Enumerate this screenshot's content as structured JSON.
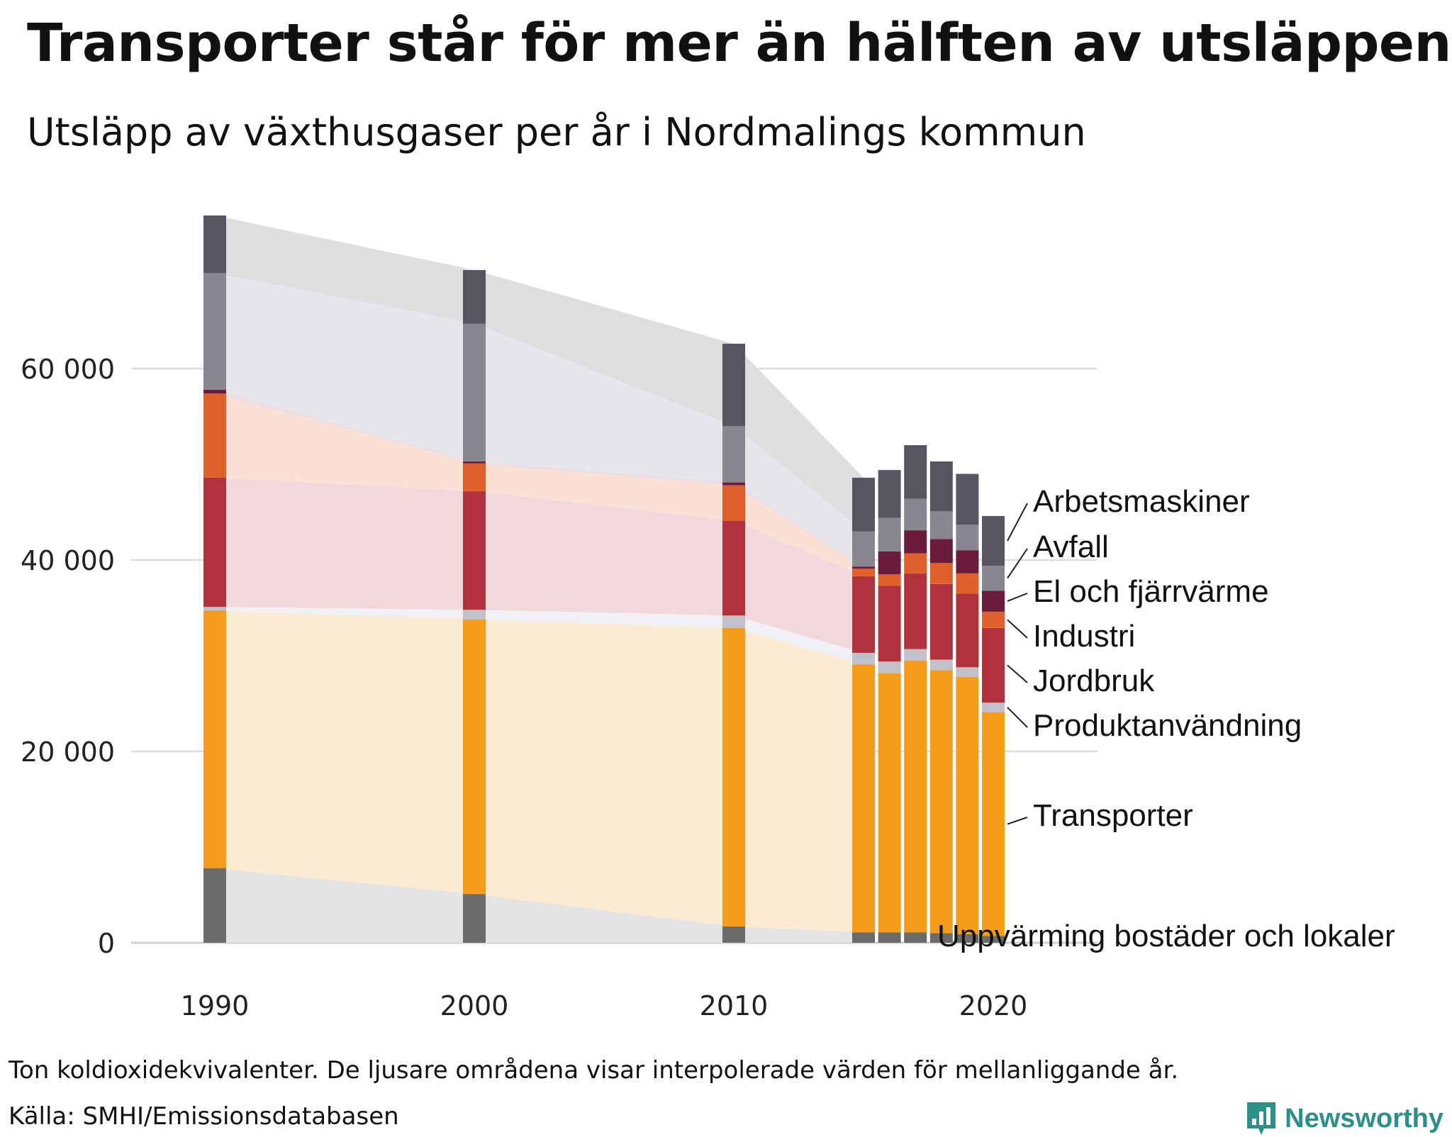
{
  "title": "Transporter står för mer än hälften av utsläppen",
  "subtitle": "Utsläpp av växthusgaser per år i Nordmalings kommun",
  "footnote": "Ton koldioxidekvivalenter. De ljusare områdena visar interpolerade värden för mellanliggande år.",
  "source": "Källa: SMHI/Emissionsdatabasen",
  "brand": "Newsworthy",
  "colors": {
    "gridline": "#dddde3",
    "axis_text": "#222222",
    "brand": "#2c9086"
  },
  "chart_data": {
    "type": "bar",
    "stacked": true,
    "title": "Transporter står för mer än hälften av utsläppen",
    "ylabel": "Ton koldioxidekvivalenter",
    "ylim": [
      0,
      76000
    ],
    "yticks": [
      0,
      20000,
      40000,
      60000
    ],
    "ytick_labels": [
      "0",
      "20 000",
      "40 000",
      "60 000"
    ],
    "xticks": [
      1990,
      2000,
      2010,
      2020
    ],
    "xtick_labels": [
      "1990",
      "2000",
      "2010",
      "2020"
    ],
    "x": [
      1990,
      2000,
      2010,
      2015,
      2016,
      2017,
      2018,
      2019,
      2020
    ],
    "interpolated_between": [
      1990,
      2000,
      2010,
      2015
    ],
    "series": [
      {
        "name": "Uppvärming bostäder och lokaler",
        "color": "#6b6b6b",
        "light": "#e4e4e6",
        "values": [
          7800,
          5100,
          1700,
          1100,
          1100,
          1100,
          1000,
          900,
          700
        ]
      },
      {
        "name": "Transporter",
        "color": "#f59c1a",
        "light": "#fbebd2",
        "values": [
          26900,
          28700,
          31200,
          28000,
          27100,
          28400,
          27500,
          26900,
          23400
        ]
      },
      {
        "name": "Produktanvändning",
        "color": "#c2c0c9",
        "light": "#f1f0f4",
        "values": [
          400,
          1000,
          1300,
          1200,
          1200,
          1200,
          1100,
          1000,
          1000
        ]
      },
      {
        "name": "Jordbruk",
        "color": "#b0323c",
        "light": "#f1d8da",
        "values": [
          13500,
          12400,
          9900,
          8000,
          7900,
          7900,
          7900,
          7700,
          7800
        ]
      },
      {
        "name": "Industri",
        "color": "#e0602c",
        "light": "#fbe0d6",
        "values": [
          8800,
          2900,
          3700,
          800,
          1200,
          2100,
          2200,
          2100,
          1700
        ]
      },
      {
        "name": "El och fjärrvärme",
        "color": "#6b1c3a",
        "light": "#ecdde3",
        "values": [
          400,
          200,
          300,
          200,
          2400,
          2400,
          2500,
          2400,
          2200
        ]
      },
      {
        "name": "Avfall",
        "color": "#88868f",
        "light": "#e7e7eb",
        "values": [
          12200,
          14400,
          5900,
          3700,
          3500,
          3300,
          2900,
          2700,
          2600
        ]
      },
      {
        "name": "Arbetsmaskiner",
        "color": "#57555f",
        "light": "#dedee1",
        "values": [
          6000,
          5600,
          8600,
          5600,
          5000,
          5600,
          5200,
          5300,
          5200
        ]
      }
    ]
  }
}
